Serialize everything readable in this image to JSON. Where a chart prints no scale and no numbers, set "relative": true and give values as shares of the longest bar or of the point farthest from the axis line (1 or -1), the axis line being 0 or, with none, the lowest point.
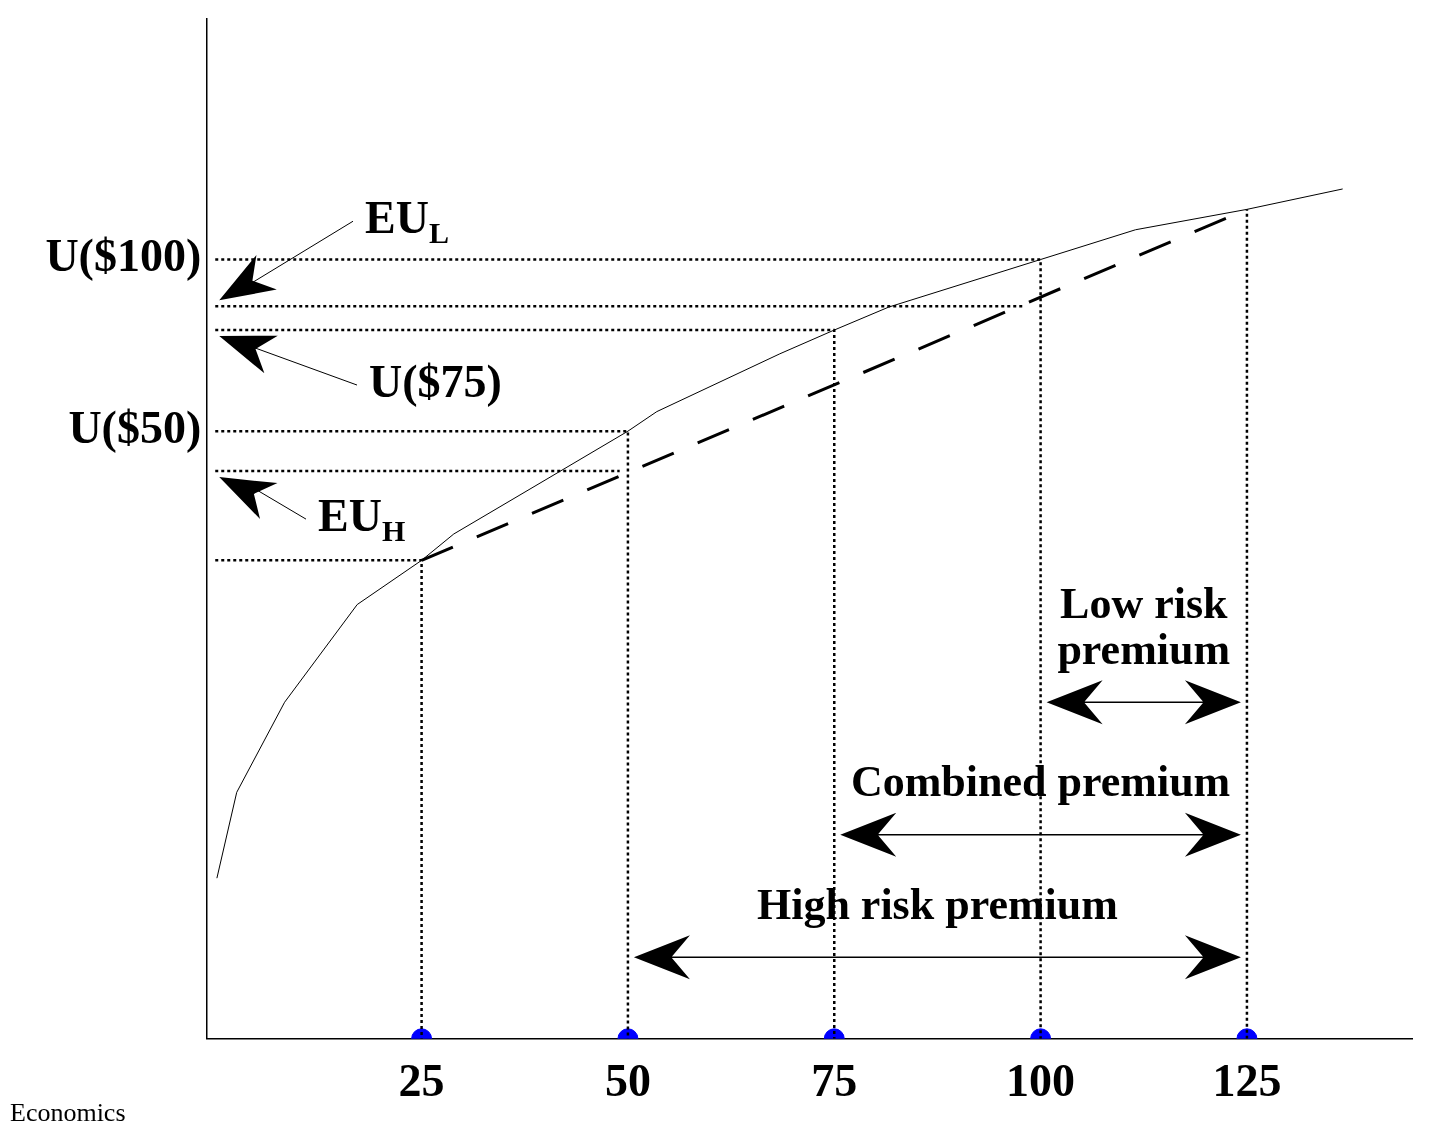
{
  "chart_data": {
    "type": "line",
    "relative": true,
    "xlim": [
      -1,
      145
    ],
    "xticks": [
      25,
      50,
      75,
      100,
      125
    ],
    "tick_labels": "x",
    "series": [
      {
        "color": "#000000",
        "line_style": "solid",
        "marker": "none",
        "x": [
          0.2,
          2.6,
          8.4,
          17.2,
          25,
          28.9,
          38.5,
          50,
          53.5,
          68.4,
          75,
          81.6,
          100,
          111.5,
          125,
          136.6
        ],
        "values": [
          0.189,
          0.29,
          0.396,
          0.511,
          0.563,
          0.594,
          0.649,
          0.715,
          0.738,
          0.806,
          0.834,
          0.861,
          0.917,
          0.952,
          0.976,
          1
        ]
      },
      {
        "color": "#000000",
        "line_style": "dashed",
        "marker": "none",
        "x": [
          25,
          125
        ],
        "values": [
          0.563,
          0.976
        ]
      },
      {
        "color": "#000000",
        "line_style": "dotted",
        "marker": "none",
        "x": [
          0,
          100,
          100
        ],
        "values": [
          0.917,
          0.917,
          0
        ]
      },
      {
        "color": "#000000",
        "line_style": "dotted",
        "marker": "none",
        "x": [
          0,
          98
        ],
        "values": [
          0.862,
          0.862
        ]
      },
      {
        "color": "#000000",
        "line_style": "dotted",
        "marker": "none",
        "x": [
          0,
          75,
          75
        ],
        "values": [
          0.834,
          0.834,
          0
        ]
      },
      {
        "color": "#000000",
        "line_style": "dotted",
        "marker": "none",
        "x": [
          0,
          50,
          50
        ],
        "values": [
          0.715,
          0.715,
          0
        ]
      },
      {
        "color": "#000000",
        "line_style": "dotted",
        "marker": "none",
        "x": [
          0,
          49
        ],
        "values": [
          0.668,
          0.668
        ]
      },
      {
        "color": "#000000",
        "line_style": "dotted",
        "marker": "none",
        "x": [
          0,
          25,
          25
        ],
        "values": [
          0.563,
          0.563,
          0
        ]
      },
      {
        "color": "#000000",
        "line_style": "dotted",
        "marker": "none",
        "x": [
          125,
          125
        ],
        "values": [
          0,
          0.976
        ]
      },
      {
        "type": "scatter",
        "color": "#0000ff",
        "marker": "circle",
        "x": [
          25,
          50,
          75,
          100,
          125
        ],
        "values": [
          0,
          0,
          0,
          0,
          0
        ]
      }
    ],
    "annotations": [
      "U($100)",
      "EU$_{L}$",
      "U($75)",
      "U($50)",
      "EU$_{H}$",
      "Low risk premium",
      "Combined premium",
      "High risk premium",
      "Economics"
    ]
  }
}
